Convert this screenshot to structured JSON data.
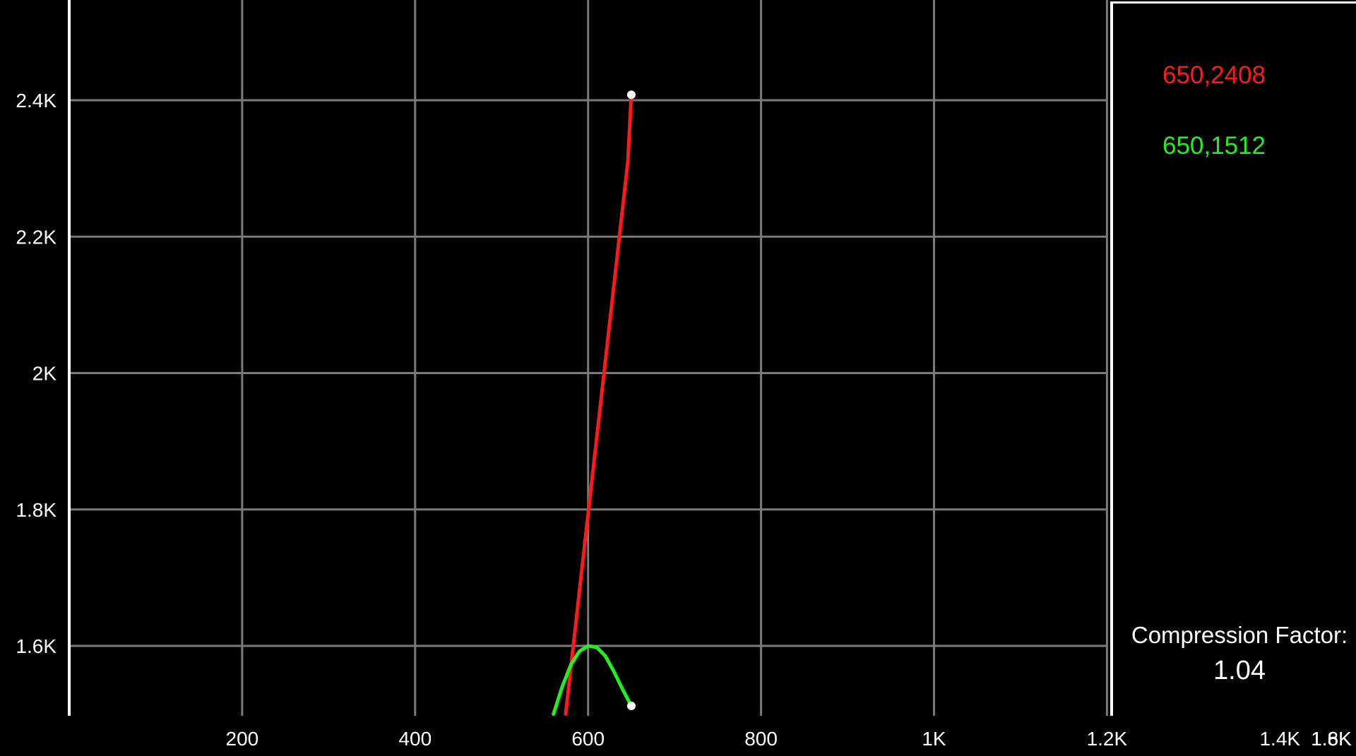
{
  "chart_data": {
    "type": "line",
    "xlim": [
      0,
      1800
    ],
    "ylim": [
      1500,
      2550
    ],
    "x_ticks": [
      {
        "value": 200,
        "label": "200"
      },
      {
        "value": 400,
        "label": "400"
      },
      {
        "value": 600,
        "label": "600"
      },
      {
        "value": 800,
        "label": "800"
      },
      {
        "value": 1000,
        "label": "1K"
      },
      {
        "value": 1200,
        "label": "1.2K"
      },
      {
        "value": 1400,
        "label": "1.4K"
      },
      {
        "value": 1600,
        "label": "1.6K"
      },
      {
        "value": 1800,
        "label": "1.8K"
      }
    ],
    "y_ticks": [
      {
        "value": 1600,
        "label": "1.6K"
      },
      {
        "value": 1800,
        "label": "1.8K"
      },
      {
        "value": 2000,
        "label": "2K"
      },
      {
        "value": 2200,
        "label": "2.2K"
      },
      {
        "value": 2400,
        "label": "2.4K"
      }
    ],
    "grid": true,
    "series": [
      {
        "color": "#ff1a1a",
        "x": [
          574,
          582,
          590,
          598,
          606,
          614,
          622,
          630,
          638,
          646,
          650
        ],
        "y": [
          1500,
          1590,
          1680,
          1770,
          1860,
          1950,
          2040,
          2130,
          2220,
          2310,
          2408
        ],
        "end_point": [
          650,
          2408
        ]
      },
      {
        "color": "#22ee22",
        "x": [
          560,
          570,
          580,
          590,
          600,
          610,
          620,
          630,
          640,
          650
        ],
        "y": [
          1500,
          1540,
          1572,
          1592,
          1600,
          1598,
          1585,
          1562,
          1536,
          1512
        ],
        "end_point": [
          650,
          1512
        ]
      }
    ]
  },
  "side_panel": {
    "red_readout": "650,2408",
    "green_readout": "650,1512",
    "compression_label": "Compression Factor:",
    "compression_value": "1.04"
  }
}
